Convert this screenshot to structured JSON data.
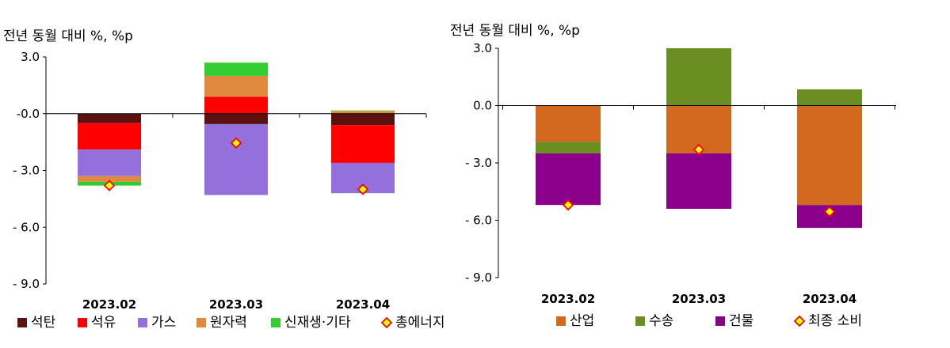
{
  "chart_data": [
    {
      "type": "bar",
      "stacked": true,
      "unit_label": "전년 동월 대비 %, %p",
      "categories": [
        "2023.02",
        "2023.03",
        "2023.04"
      ],
      "ylim": [
        -9.0,
        3.0
      ],
      "yticks": [
        3.0,
        0.0,
        -3.0,
        -6.0,
        -9.0
      ],
      "ytick_labels": [
        "3.0",
        "-0.0",
        "- 3.0",
        "- 6.0",
        "- 9.0"
      ],
      "grid": false,
      "legend_position": "bottom",
      "series": [
        {
          "name": "석탄",
          "color": "#5c1111",
          "values": [
            -0.5,
            -0.55,
            -0.6
          ]
        },
        {
          "name": "석유",
          "color": "#ff0000",
          "values": [
            -1.4,
            0.9,
            -2.0
          ]
        },
        {
          "name": "가스",
          "color": "#9370db",
          "values": [
            -1.4,
            -3.75,
            -1.6
          ]
        },
        {
          "name": "원자력",
          "color": "#e08a40",
          "values": [
            -0.3,
            1.1,
            0.15
          ]
        },
        {
          "name": "신재생·기타",
          "color": "#33cc33",
          "values": [
            -0.2,
            0.7,
            0.02
          ]
        }
      ],
      "total": {
        "name": "총에너지",
        "values": [
          -3.8,
          -1.55,
          -4.0
        ]
      }
    },
    {
      "type": "bar",
      "stacked": true,
      "unit_label": "전년 동월 대비 %, %p",
      "categories": [
        "2023.02",
        "2023.03",
        "2023.04"
      ],
      "ylim": [
        -9.0,
        3.0
      ],
      "yticks": [
        3.0,
        0.0,
        -3.0,
        -6.0,
        -9.0
      ],
      "ytick_labels": [
        "3.0",
        "0.0",
        "- 3.0",
        "- 6.0",
        "- 9.0"
      ],
      "grid": false,
      "legend_position": "bottom",
      "series": [
        {
          "name": "산업",
          "color": "#d2691e",
          "values": [
            -1.9,
            -2.5,
            -5.2
          ]
        },
        {
          "name": "수송",
          "color": "#6b8e23",
          "values": [
            -0.6,
            3.0,
            0.85
          ]
        },
        {
          "name": "건물",
          "color": "#8b008b",
          "values": [
            -2.7,
            -2.9,
            -1.2
          ]
        }
      ],
      "total": {
        "name": "최종 소비",
        "values": [
          -5.2,
          -2.3,
          -5.55
        ]
      }
    }
  ]
}
